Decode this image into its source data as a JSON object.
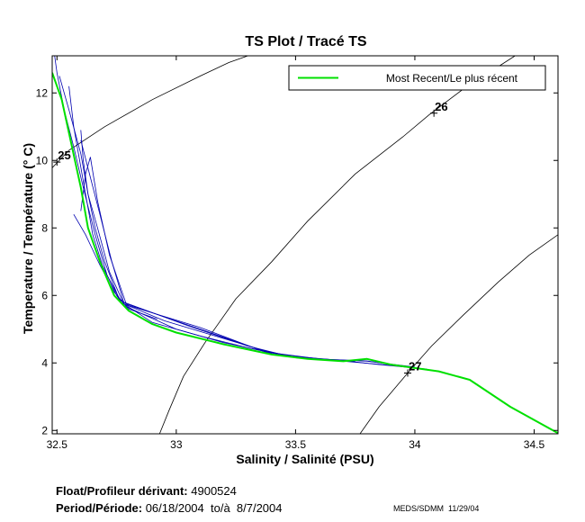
{
  "chart_data": {
    "type": "line",
    "title": "TS Plot / Tracé TS",
    "xlabel": "Salinity / Salinité (PSU)",
    "ylabel": "Temperature / Température (° C)",
    "xlim": [
      32.48,
      34.6
    ],
    "ylim": [
      1.9,
      13.1
    ],
    "xticks": [
      32.5,
      33,
      33.5,
      34,
      34.5
    ],
    "yticks": [
      2,
      4,
      6,
      8,
      10,
      12
    ],
    "xtick_labels": [
      "32.5",
      "33",
      "33.5",
      "34",
      "34.5"
    ],
    "ytick_labels": [
      "2",
      "4",
      "6",
      "8",
      "10",
      "12"
    ],
    "legend": {
      "position": "top-right",
      "label": "Most Recent/Le plus récent"
    },
    "colors": {
      "recent": "#00e000",
      "profiles": "#0000b0",
      "isopycnals": "#000000"
    },
    "density_contours": [
      {
        "label": "25",
        "points": [
          [
            32.48,
            9.78
          ],
          [
            32.55,
            10.3
          ],
          [
            32.7,
            11.0
          ],
          [
            32.9,
            11.8
          ],
          [
            33.1,
            12.5
          ],
          [
            33.22,
            12.9
          ],
          [
            33.3,
            13.1
          ]
        ]
      },
      {
        "label": "26",
        "points": [
          [
            32.93,
            1.9
          ],
          [
            32.97,
            2.6
          ],
          [
            33.03,
            3.6
          ],
          [
            33.12,
            4.6
          ],
          [
            33.25,
            5.9
          ],
          [
            33.4,
            7.0
          ],
          [
            33.55,
            8.2
          ],
          [
            33.75,
            9.6
          ],
          [
            33.95,
            10.7
          ],
          [
            34.06,
            11.35
          ],
          [
            34.2,
            12.1
          ],
          [
            34.42,
            13.1
          ]
        ]
      },
      {
        "label": "27",
        "points": [
          [
            33.77,
            1.9
          ],
          [
            33.85,
            2.7
          ],
          [
            33.97,
            3.7
          ],
          [
            34.07,
            4.5
          ],
          [
            34.2,
            5.4
          ],
          [
            34.35,
            6.4
          ],
          [
            34.48,
            7.2
          ],
          [
            34.6,
            7.8
          ]
        ]
      }
    ],
    "density_marks": [
      {
        "label": "25",
        "s": 32.5,
        "t": 9.95
      },
      {
        "label": "26",
        "s": 34.08,
        "t": 11.4
      },
      {
        "label": "27",
        "s": 33.97,
        "t": 3.7
      }
    ],
    "series": [
      {
        "name": "Most Recent/Le plus récent",
        "role": "recent",
        "points": [
          [
            32.48,
            12.6
          ],
          [
            32.52,
            11.8
          ],
          [
            32.56,
            10.5
          ],
          [
            32.6,
            9.2
          ],
          [
            32.63,
            8.0
          ],
          [
            32.68,
            7.0
          ],
          [
            32.74,
            6.0
          ],
          [
            32.8,
            5.55
          ],
          [
            32.9,
            5.15
          ],
          [
            33.0,
            4.9
          ],
          [
            33.2,
            4.55
          ],
          [
            33.4,
            4.25
          ],
          [
            33.55,
            4.12
          ],
          [
            33.7,
            4.05
          ],
          [
            33.8,
            4.12
          ],
          [
            33.9,
            3.95
          ],
          [
            34.0,
            3.85
          ],
          [
            34.1,
            3.75
          ],
          [
            34.23,
            3.5
          ],
          [
            34.4,
            2.7
          ],
          [
            34.6,
            1.92
          ]
        ]
      },
      {
        "name": "",
        "role": "profile",
        "points": [
          [
            32.49,
            13.1
          ],
          [
            32.5,
            12.6
          ],
          [
            32.53,
            11.5
          ],
          [
            32.57,
            10.4
          ],
          [
            32.61,
            9.2
          ],
          [
            32.66,
            7.8
          ],
          [
            32.71,
            6.6
          ],
          [
            32.77,
            5.8
          ],
          [
            32.9,
            5.2
          ],
          [
            33.1,
            4.8
          ],
          [
            33.3,
            4.45
          ],
          [
            33.5,
            4.18
          ],
          [
            33.7,
            4.07
          ],
          [
            33.85,
            3.95
          ],
          [
            34.0,
            3.85
          ],
          [
            34.05,
            3.82
          ]
        ]
      },
      {
        "name": "",
        "role": "profile",
        "points": [
          [
            32.51,
            12.5
          ],
          [
            32.55,
            11.5
          ],
          [
            32.6,
            10.2
          ],
          [
            32.63,
            9.0
          ],
          [
            32.67,
            8.0
          ],
          [
            32.72,
            6.7
          ],
          [
            32.78,
            5.75
          ],
          [
            32.95,
            5.25
          ],
          [
            33.2,
            4.72
          ],
          [
            33.4,
            4.3
          ],
          [
            33.6,
            4.12
          ],
          [
            33.8,
            4.05
          ],
          [
            34.0,
            3.88
          ]
        ]
      },
      {
        "name": "",
        "role": "profile",
        "points": [
          [
            32.55,
            12.2
          ],
          [
            32.57,
            11.0
          ],
          [
            32.6,
            9.8
          ],
          [
            32.62,
            9.0
          ],
          [
            32.65,
            7.8
          ],
          [
            32.69,
            6.9
          ],
          [
            32.75,
            6.0
          ],
          [
            32.78,
            5.7
          ],
          [
            33.0,
            5.0
          ],
          [
            33.2,
            4.6
          ],
          [
            33.45,
            4.22
          ],
          [
            33.65,
            4.1
          ],
          [
            33.8,
            4.06
          ],
          [
            33.95,
            3.9
          ]
        ]
      },
      {
        "name": "",
        "role": "profile",
        "points": [
          [
            32.6,
            10.9
          ],
          [
            32.61,
            10.0
          ],
          [
            32.63,
            9.0
          ],
          [
            32.66,
            8.0
          ],
          [
            32.7,
            7.0
          ],
          [
            32.76,
            5.9
          ],
          [
            32.8,
            5.7
          ],
          [
            33.1,
            5.05
          ],
          [
            33.4,
            4.25
          ],
          [
            33.7,
            4.05
          ],
          [
            33.95,
            3.9
          ]
        ]
      },
      {
        "name": "",
        "role": "profile",
        "points": [
          [
            32.6,
            10.6
          ],
          [
            32.64,
            9.5
          ],
          [
            32.68,
            8.4
          ],
          [
            32.73,
            7.0
          ],
          [
            32.78,
            5.8
          ],
          [
            33.05,
            5.1
          ],
          [
            33.3,
            4.5
          ],
          [
            33.5,
            4.15
          ],
          [
            33.75,
            4.05
          ]
        ]
      },
      {
        "name": "",
        "role": "profile",
        "points": [
          [
            32.6,
            8.5
          ],
          [
            32.62,
            9.6
          ],
          [
            32.64,
            10.1
          ],
          [
            32.67,
            8.8
          ],
          [
            32.72,
            7.2
          ],
          [
            32.79,
            5.75
          ],
          [
            33.41,
            4.25
          ],
          [
            33.6,
            4.1
          ]
        ]
      },
      {
        "name": "",
        "role": "profile",
        "points": [
          [
            32.57,
            8.4
          ],
          [
            32.62,
            7.8
          ],
          [
            32.68,
            6.9
          ],
          [
            32.74,
            6.1
          ],
          [
            32.8,
            5.6
          ],
          [
            32.92,
            5.3
          ]
        ]
      }
    ]
  },
  "footer": {
    "float_label": "Float/Profileur dérivant:",
    "float_id": "4900524",
    "period_label": "Period/Période:",
    "period_value": "06/18/2004  to/à  8/7/2004",
    "credit": "MEDS/SDMM  11/29/04"
  }
}
